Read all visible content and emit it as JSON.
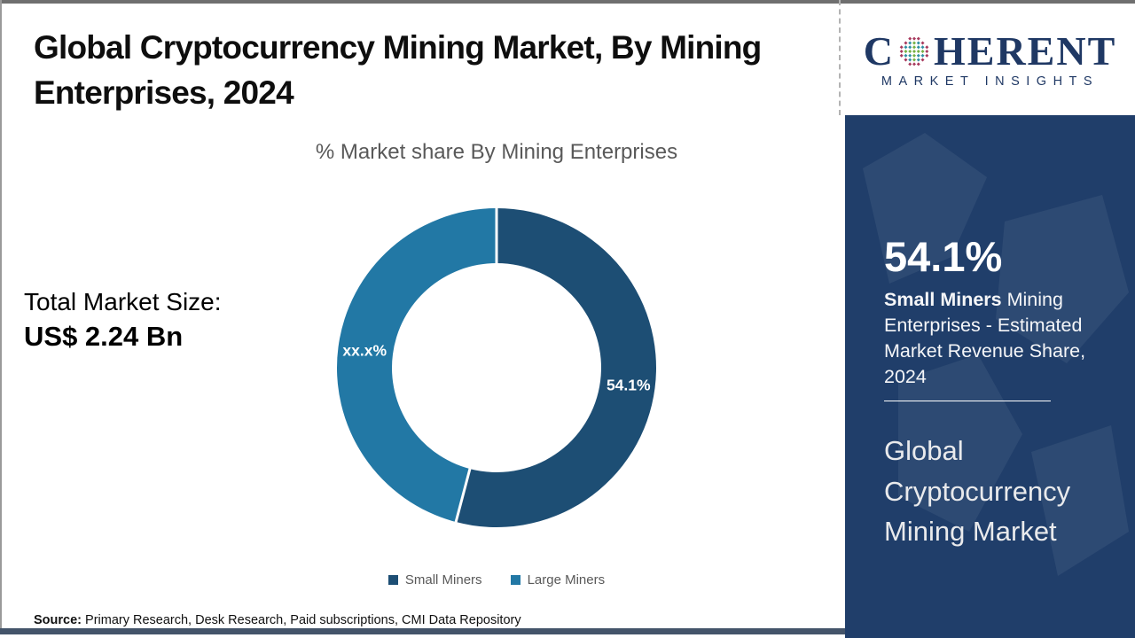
{
  "header": {
    "title": "Global Cryptocurrency Mining Market, By Mining Enterprises, 2024"
  },
  "chart": {
    "subtitle": "% Market share By Mining Enterprises"
  },
  "chart_data": {
    "type": "pie",
    "donut": true,
    "title": "% Market share By Mining Enterprises",
    "start_angle_deg": 0,
    "direction": "clockwise",
    "inner_radius_ratio": 0.655,
    "legend_position": "bottom",
    "segments": [
      {
        "name": "Small Miners",
        "value": 54.1,
        "label": "54.1%",
        "color": "#1d4e74"
      },
      {
        "name": "Large Miners",
        "value": 45.9,
        "label": "xx.x%",
        "color": "#2278a5"
      }
    ]
  },
  "total": {
    "label": "Total Market Size:",
    "value": "US$ 2.24 Bn"
  },
  "source": {
    "prefix": "Source:",
    "text": " Primary Research, Desk Research, Paid subscriptions, CMI Data Repository"
  },
  "logo": {
    "part1": "C",
    "part2": "HERENT",
    "tagline": "MARKET INSIGHTS",
    "globe_icon": "dotted-globe-icon",
    "navy": "#1f3864",
    "globe_colors": {
      "rim": "#a73a5d",
      "fill": "#2f8fa3",
      "cross": "#76b043"
    }
  },
  "sidebar": {
    "stat_value": "54.1%",
    "stat_bold": "Small Miners",
    "stat_rest": " Mining Enterprises - Estimated Market Revenue Share, 2024",
    "market_name": "Global Cryptocurrency Mining Market",
    "bg_color": "#203e6a"
  },
  "colors": {
    "small_miners": "#1d4e74",
    "large_miners": "#2278a5",
    "sidebar_navy": "#203e6a",
    "bottom_bar": "#44546a",
    "subtitle_gray": "#595959"
  }
}
